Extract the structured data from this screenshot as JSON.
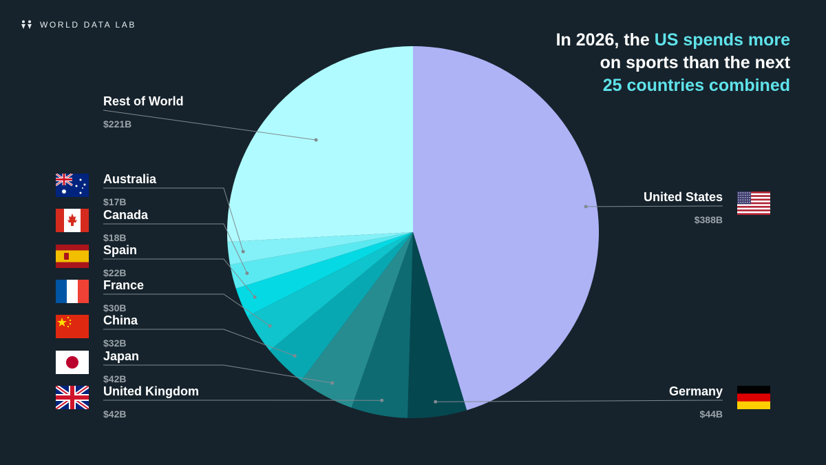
{
  "brand": {
    "name": "WORLD DATA LAB",
    "icon": "wdl-logo-icon"
  },
  "headline": {
    "line1_pre": "In 2026, the ",
    "line1_accent": "US spends more",
    "line2": "on sports than the next",
    "line3_accent": "25 countries combined",
    "accent_color": "#5fe3ea"
  },
  "chart_data": {
    "type": "pie",
    "title": "In 2026, the US spends more on sports than the next 25 countries combined",
    "unit": "USD billions",
    "slices": [
      {
        "name": "United States",
        "label": "$388B",
        "value": 388,
        "color": "#aeb3f6",
        "flag": "us-flag-icon"
      },
      {
        "name": "Germany",
        "label": "$44B",
        "value": 44,
        "color": "#05474f",
        "flag": "germany-flag-icon"
      },
      {
        "name": "United Kingdom",
        "label": "$42B",
        "value": 42,
        "color": "#0e6b72",
        "flag": "uk-flag-icon"
      },
      {
        "name": "Japan",
        "label": "$42B",
        "value": 42,
        "color": "#268c90",
        "flag": "japan-flag-icon"
      },
      {
        "name": "China",
        "label": "$32B",
        "value": 32,
        "color": "#08a8b2",
        "flag": "china-flag-icon"
      },
      {
        "name": "France",
        "label": "$30B",
        "value": 30,
        "color": "#0fc4cc",
        "flag": "france-flag-icon"
      },
      {
        "name": "Spain",
        "label": "$22B",
        "value": 22,
        "color": "#05d9e4",
        "flag": "spain-flag-icon"
      },
      {
        "name": "Canada",
        "label": "$18B",
        "value": 18,
        "color": "#5be9f1",
        "flag": "canada-flag-icon"
      },
      {
        "name": "Australia",
        "label": "$17B",
        "value": 17,
        "color": "#83f1f7",
        "flag": "australia-flag-icon"
      },
      {
        "name": "Rest of World",
        "label": "$221B",
        "value": 221,
        "color": "#b0fbff",
        "flag": ""
      }
    ]
  }
}
